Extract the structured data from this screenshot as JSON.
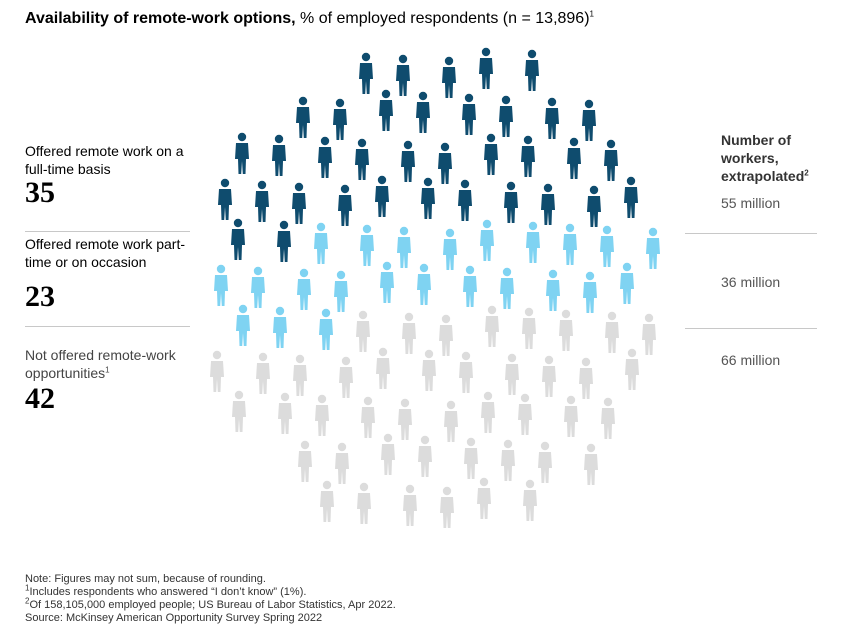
{
  "header": {
    "title_bold": "Availability of remote-work options,",
    "title_rest": "% of employed respondents (n = 13,896)",
    "title_note": "1"
  },
  "groups": [
    {
      "label": "Offered remote work on a full-time basis",
      "value": 35,
      "workers": "55 million",
      "color": "#0f4c6e"
    },
    {
      "label": "Offered remote work part-time or on occasion",
      "value": 23,
      "workers": "36 million",
      "color": "#7fd3f2"
    },
    {
      "label": "Not offered remote-work opportunities",
      "label_note": "1",
      "value": 42,
      "workers": "66 million",
      "color": "#dcdcdc"
    }
  ],
  "workers_header": {
    "text": "Number of workers, extrapolated",
    "note": "2"
  },
  "notes": [
    {
      "text": "Note: Figures may not sum, because of rounding."
    },
    {
      "mark": "1",
      "text": "Includes respondents who answered “I don’t know” (1%)."
    },
    {
      "mark": "2",
      "text": "Of 158,105,000 employed people; US Bureau of Labor Statistics, Apr 2022."
    },
    {
      "text": "Source: McKinsey American Opportunity Survey Spring 2022"
    }
  ]
}
